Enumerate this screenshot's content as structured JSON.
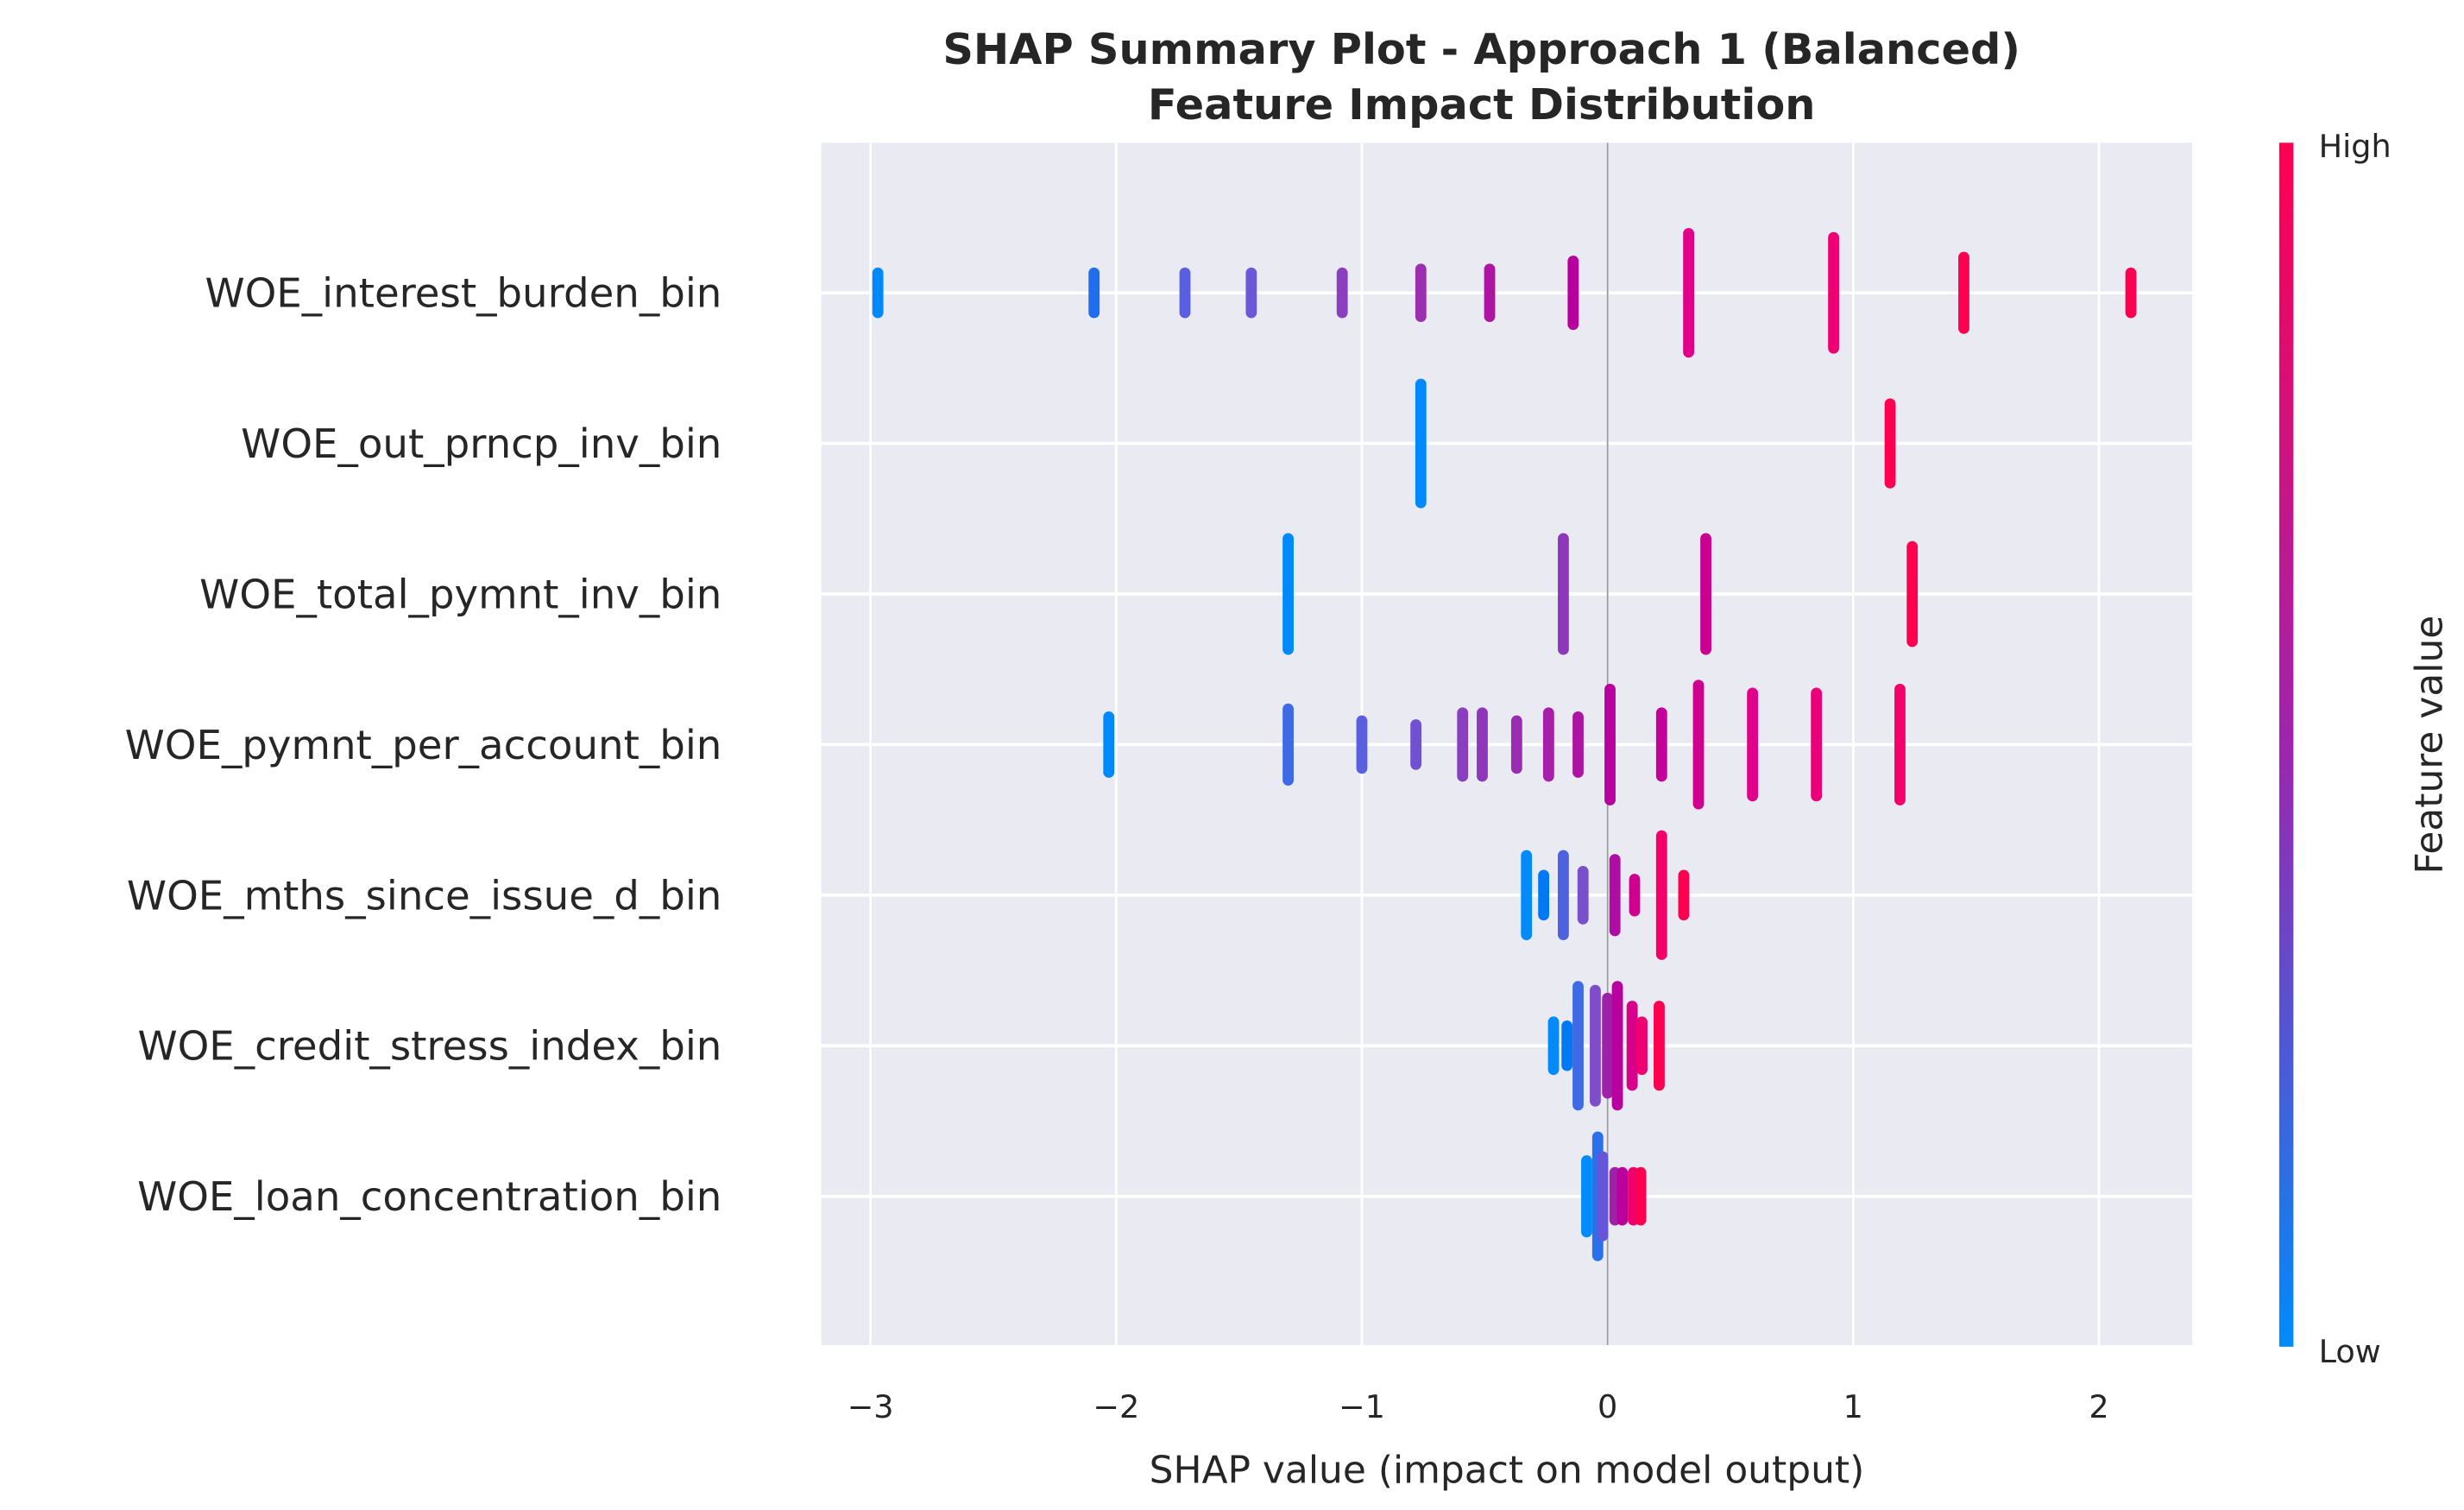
{
  "chart_data": {
    "type": "scatter",
    "subtype": "shap-summary-beeswarm",
    "title": "SHAP Summary Plot - Approach 1 (Balanced)",
    "subtitle": "Feature Impact Distribution",
    "xlabel": "SHAP value (impact on model output)",
    "ylabel": "",
    "xlim": [
      -3.2,
      2.38
    ],
    "xticks": [
      -3,
      -2,
      -1,
      0,
      1,
      2
    ],
    "xtick_labels": [
      "−3",
      "−2",
      "−1",
      "0",
      "1",
      "2"
    ],
    "grid": true,
    "background": "#eaeaf2",
    "colorbar": {
      "label": "Feature value",
      "high_label": "High",
      "low_label": "Low",
      "low_color": "#008bfb",
      "high_color": "#ff0051"
    },
    "features": [
      {
        "name": "WOE_interest_burden_bin",
        "points": [
          {
            "shap": -2.97,
            "color": "#0089fb",
            "n": 5
          },
          {
            "shap": -2.09,
            "color": "#1f6fec",
            "n": 5
          },
          {
            "shap": -1.72,
            "color": "#5a5fe0",
            "n": 5
          },
          {
            "shap": -1.45,
            "color": "#6a58d6",
            "n": 5
          },
          {
            "shap": -1.08,
            "color": "#8a3fc0",
            "n": 5
          },
          {
            "shap": -0.76,
            "color": "#9c2fb0",
            "n": 6
          },
          {
            "shap": -0.48,
            "color": "#ae14a2",
            "n": 6
          },
          {
            "shap": -0.14,
            "color": "#b8009e",
            "n": 8
          },
          {
            "shap": 0.33,
            "color": "#e0008a",
            "n": 15
          },
          {
            "shap": 0.92,
            "color": "#ef0072",
            "n": 14
          },
          {
            "shap": 1.45,
            "color": "#ff0051",
            "n": 9
          },
          {
            "shap": 2.13,
            "color": "#ff0051",
            "n": 5
          }
        ]
      },
      {
        "name": "WOE_out_prncp_inv_bin",
        "points": [
          {
            "shap": -0.76,
            "color": "#0089fb",
            "n": 15
          },
          {
            "shap": 1.15,
            "color": "#ff0051",
            "n": 10
          }
        ]
      },
      {
        "name": "WOE_total_pymnt_inv_bin",
        "points": [
          {
            "shap": -1.3,
            "color": "#0089fb",
            "n": 14
          },
          {
            "shap": -0.18,
            "color": "#8e37bb",
            "n": 14
          },
          {
            "shap": 0.4,
            "color": "#c9008f",
            "n": 14
          },
          {
            "shap": 1.24,
            "color": "#ff0051",
            "n": 12
          }
        ]
      },
      {
        "name": "WOE_pymnt_per_account_bin",
        "points": [
          {
            "shap": -2.03,
            "color": "#0089fb",
            "n": 7
          },
          {
            "shap": -1.3,
            "color": "#3f6ae6",
            "n": 9
          },
          {
            "shap": -1.0,
            "color": "#5a5fe0",
            "n": 6
          },
          {
            "shap": -0.78,
            "color": "#7051d2",
            "n": 5
          },
          {
            "shap": -0.59,
            "color": "#8a3fc0",
            "n": 8
          },
          {
            "shap": -0.51,
            "color": "#8e37bb",
            "n": 8
          },
          {
            "shap": -0.37,
            "color": "#9a2cb2",
            "n": 6
          },
          {
            "shap": -0.24,
            "color": "#a51fab",
            "n": 8
          },
          {
            "shap": -0.12,
            "color": "#ae14a2",
            "n": 7
          },
          {
            "shap": 0.01,
            "color": "#b8009e",
            "n": 14
          },
          {
            "shap": 0.22,
            "color": "#c4009a",
            "n": 8
          },
          {
            "shap": 0.37,
            "color": "#d0008f",
            "n": 15
          },
          {
            "shap": 0.59,
            "color": "#e0008a",
            "n": 13
          },
          {
            "shap": 0.85,
            "color": "#ea0078",
            "n": 13
          },
          {
            "shap": 1.19,
            "color": "#f5006b",
            "n": 14
          }
        ]
      },
      {
        "name": "WOE_mths_since_issue_d_bin",
        "points": [
          {
            "shap": -0.33,
            "color": "#028bfa",
            "n": 10
          },
          {
            "shap": -0.26,
            "color": "#0079f3",
            "n": 5
          },
          {
            "shap": -0.18,
            "color": "#4e62e0",
            "n": 10
          },
          {
            "shap": -0.1,
            "color": "#7a4fcc",
            "n": 6
          },
          {
            "shap": 0.03,
            "color": "#ae0ca3",
            "n": 9
          },
          {
            "shap": 0.11,
            "color": "#cf0090",
            "n": 4
          },
          {
            "shap": 0.22,
            "color": "#f5006b",
            "n": 15
          },
          {
            "shap": 0.31,
            "color": "#ff0051",
            "n": 5
          }
        ]
      },
      {
        "name": "WOE_credit_stress_index_bin",
        "points": [
          {
            "shap": -0.22,
            "color": "#028bfa",
            "n": 6
          },
          {
            "shap": -0.165,
            "color": "#0079f3",
            "n": 5
          },
          {
            "shap": -0.12,
            "color": "#3f6ae6",
            "n": 15
          },
          {
            "shap": -0.05,
            "color": "#7f4dc9",
            "n": 14
          },
          {
            "shap": 0.0,
            "color": "#9e22a8",
            "n": 12
          },
          {
            "shap": 0.04,
            "color": "#b8009f",
            "n": 15
          },
          {
            "shap": 0.1,
            "color": "#d70089",
            "n": 10
          },
          {
            "shap": 0.14,
            "color": "#ee0073",
            "n": 6
          },
          {
            "shap": 0.21,
            "color": "#ff0051",
            "n": 10
          }
        ]
      },
      {
        "name": "WOE_loan_concentration_bin",
        "points": [
          {
            "shap": -0.085,
            "color": "#028bfa",
            "n": 9
          },
          {
            "shap": -0.04,
            "color": "#2a70ea",
            "n": 15
          },
          {
            "shap": -0.02,
            "color": "#6556d9",
            "n": 10
          },
          {
            "shap": 0.03,
            "color": "#9e22a8",
            "n": 6
          },
          {
            "shap": 0.06,
            "color": "#b9009d",
            "n": 6
          },
          {
            "shap": 0.105,
            "color": "#ef0070",
            "n": 6
          },
          {
            "shap": 0.135,
            "color": "#ff0051",
            "n": 6
          }
        ]
      }
    ]
  }
}
